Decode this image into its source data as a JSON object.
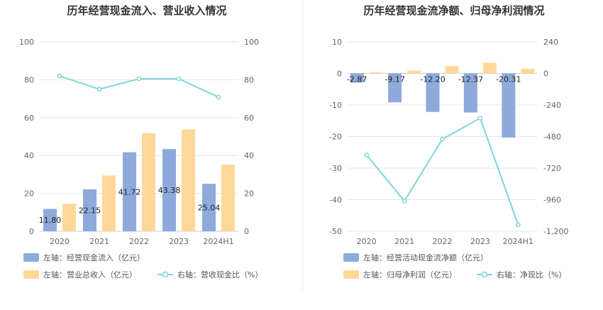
{
  "chart_data": [
    {
      "type": "bar",
      "title": "历年经营现金流入、营业收入情况",
      "categories": [
        "2020",
        "2021",
        "2022",
        "2023",
        "2024H1"
      ],
      "left_axis": {
        "ylim": [
          0,
          100
        ],
        "ticks": [
          "0",
          "20",
          "40",
          "60",
          "80",
          "100"
        ]
      },
      "right_axis": {
        "ylim": [
          0,
          100
        ],
        "ticks": [
          "0",
          "20",
          "40",
          "60",
          "80",
          "100"
        ]
      },
      "grid": true,
      "legend_position": "bottom",
      "series": [
        {
          "name": "左轴：经营现金流入（亿元）",
          "type": "bar",
          "axis": "left",
          "color": "#8eaadb",
          "values": [
            11.8,
            22.15,
            41.72,
            43.38,
            25.04
          ],
          "labels": [
            "11.80",
            "22.15",
            "41.72",
            "43.38",
            "25.04"
          ]
        },
        {
          "name": "左轴：营业总收入（亿元）",
          "type": "bar",
          "axis": "left",
          "color": "#ffd899",
          "values": [
            14.5,
            29.5,
            51.8,
            53.8,
            35.2
          ]
        },
        {
          "name": "右轴：营收现金比（%）",
          "type": "line",
          "axis": "right",
          "color": "#7fd6d6",
          "values": [
            82,
            75,
            80.5,
            80.5,
            70.8
          ]
        }
      ]
    },
    {
      "type": "bar",
      "title": "历年经营现金流净额、归母净利润情况",
      "categories": [
        "2020",
        "2021",
        "2022",
        "2023",
        "2024H1"
      ],
      "left_axis": {
        "ylim": [
          -50,
          10
        ],
        "ticks": [
          "10",
          "0",
          "-10",
          "-20",
          "-30",
          "-40",
          "-50"
        ]
      },
      "right_axis": {
        "ylim": [
          -1200,
          240
        ],
        "ticks": [
          "240",
          "0",
          "-240",
          "-480",
          "-720",
          "-960",
          "-1,200"
        ]
      },
      "grid": true,
      "legend_position": "bottom",
      "series": [
        {
          "name": "左轴：经营活动现金流净额（亿元）",
          "type": "bar",
          "axis": "left",
          "color": "#8eaadb",
          "values": [
            -2.87,
            -9.17,
            -12.2,
            -12.37,
            -20.31
          ],
          "labels": [
            "-2.87",
            "-9.17",
            "-12.20",
            "-12.37",
            "-20.31"
          ]
        },
        {
          "name": "左轴：归母净利润（亿元）",
          "type": "bar",
          "axis": "left",
          "color": "#ffd899",
          "values": [
            0.4,
            0.9,
            2.3,
            3.4,
            1.5
          ]
        },
        {
          "name": "右轴：净现比（%）",
          "type": "line",
          "axis": "right",
          "color": "#7fd6d6",
          "values": [
            -620,
            -970,
            -500,
            -340,
            -1150
          ]
        }
      ]
    }
  ]
}
